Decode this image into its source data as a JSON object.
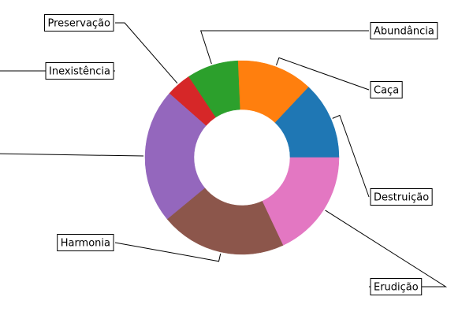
{
  "chart_data": {
    "type": "pie",
    "subtype": "donut",
    "title": "",
    "categories": [
      "Destruição",
      "Caça",
      "Abundância",
      "Preservação",
      "Inexistência",
      "Harmonia",
      "Erudição"
    ],
    "values": [
      13.0,
      12.7,
      8.6,
      4.2,
      22.5,
      21.0,
      18.0
    ],
    "colors": [
      "#1f77b4",
      "#ff7f0e",
      "#2ca02c",
      "#d62728",
      "#9467bd",
      "#8c564b",
      "#e377c2"
    ],
    "legend": "none"
  }
}
